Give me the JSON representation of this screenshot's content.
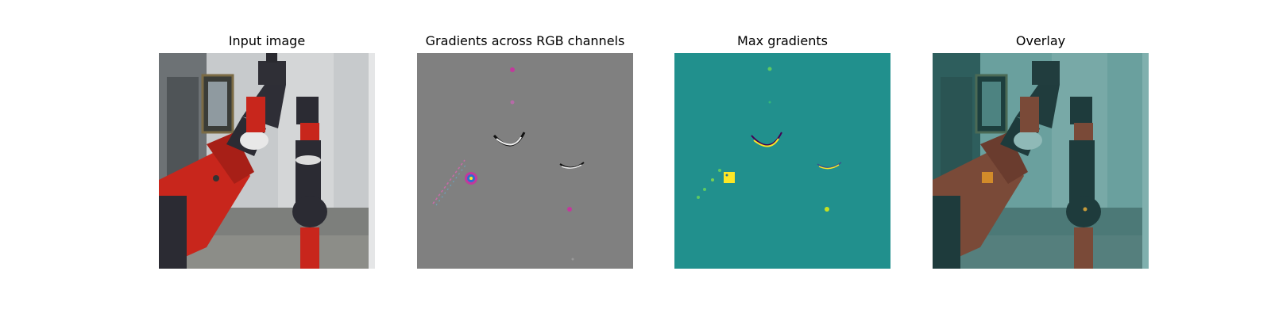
{
  "figure": {
    "panels": [
      {
        "title": "Input image"
      },
      {
        "title": "Gradients across RGB channels"
      },
      {
        "title": "Max gradients"
      },
      {
        "title": "Overlay"
      }
    ]
  },
  "colors": {
    "robot_red": "#c0251c",
    "robot_dark": "#2b2b33",
    "gradient_gray": "#808080",
    "gradient_magenta": "#c2399c",
    "viridis_teal": "#21908d",
    "viridis_yellow": "#fde725",
    "overlay_tint": "#2a7e7b"
  }
}
